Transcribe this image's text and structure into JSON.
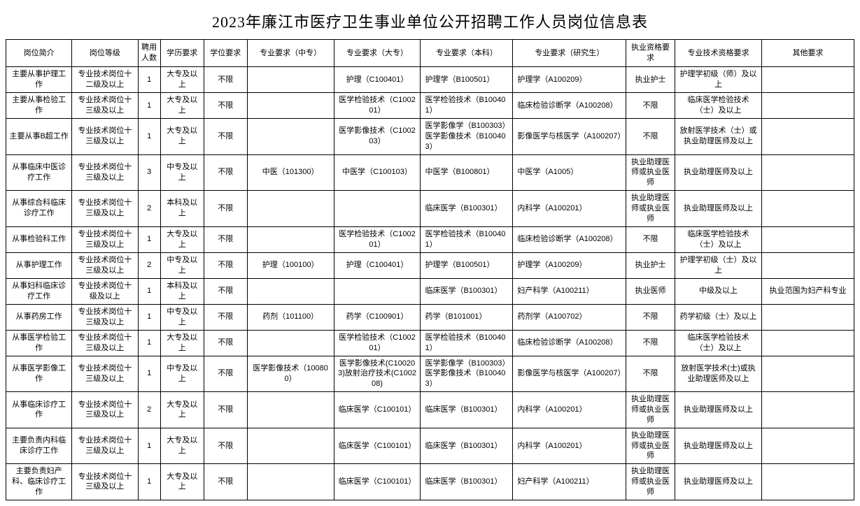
{
  "title": "2023年廉江市医疗卫生事业单位公开招聘工作人员岗位信息表",
  "columns": [
    "岗位简介",
    "岗位等级",
    "聘用人数",
    "学历要求",
    "学位要求",
    "专业要求（中专）",
    "专业要求（大专）",
    "专业要求（本科）",
    "专业要求（研究生）",
    "执业资格要求",
    "专业技术资格要求",
    "其他要求"
  ],
  "rows": [
    {
      "c0": "主要从事护理工作",
      "c1": "专业技术岗位十二级及以上",
      "c2": "1",
      "c3": "大专及以上",
      "c4": "不限",
      "c5": "",
      "c6": "护理（C100401）",
      "c7": "护理学（B100501）",
      "c8": "护理学（A100209）",
      "c9": "执业护士",
      "c10": "护理学初级（师）及以上",
      "c11": ""
    },
    {
      "c0": "主要从事检验工作",
      "c1": "专业技术岗位十三级及以上",
      "c2": "1",
      "c3": "大专及以上",
      "c4": "不限",
      "c5": "",
      "c6": "医学检验技术（C100201）",
      "c7": "医学检验技术（B100401）",
      "c8": "临床检验诊断学（A100208）",
      "c9": "不限",
      "c10": "临床医学检验技术（士）及以上",
      "c11": ""
    },
    {
      "c0": "主要从事B超工作",
      "c1": "专业技术岗位十三级及以上",
      "c2": "1",
      "c3": "大专及以上",
      "c4": "不限",
      "c5": "",
      "c6": "医学影像技术（C100203）",
      "c7": "医学影像学（B100303）医学影像技术（B100403）",
      "c8": "影像医学与核医学（A100207）",
      "c9": "不限",
      "c10": "放射医学技术（士）或执业助理医师及以上",
      "c11": ""
    },
    {
      "c0": "从事临床中医诊疗工作",
      "c1": "专业技术岗位十三级及以上",
      "c2": "3",
      "c3": "中专及以上",
      "c4": "不限",
      "c5": "中医（101300）",
      "c6": "中医学（C100103）",
      "c7": "中医学（B100801）",
      "c8": "中医学（A1005）",
      "c9": "执业助理医师或执业医师",
      "c10": "执业助理医师及以上",
      "c11": ""
    },
    {
      "c0": "从事综合科临床诊疗工作",
      "c1": "专业技术岗位十三级及以上",
      "c2": "2",
      "c3": "本科及以上",
      "c4": "不限",
      "c5": "",
      "c6": "",
      "c7": "临床医学（B100301）",
      "c8": "内科学（A100201）",
      "c9": "执业助理医师或执业医师",
      "c10": "执业助理医师及以上",
      "c11": ""
    },
    {
      "c0": "从事检验科工作",
      "c1": "专业技术岗位十三级及以上",
      "c2": "1",
      "c3": "大专及以上",
      "c4": "不限",
      "c5": "",
      "c6": "医学检验技术（C100201）",
      "c7": "医学检验技术（B100401）",
      "c8": "临床检验诊断学（A100208）",
      "c9": "不限",
      "c10": "临床医学检验技术（士）及以上",
      "c11": ""
    },
    {
      "c0": "从事护理工作",
      "c1": "专业技术岗位十三级及以上",
      "c2": "2",
      "c3": "中专及以上",
      "c4": "不限",
      "c5": "护理（100100）",
      "c6": "护理（C100401）",
      "c7": "护理学（B100501）",
      "c8": "护理学（A100209）",
      "c9": "执业护士",
      "c10": "护理学初级（士）及以上",
      "c11": ""
    },
    {
      "c0": "从事妇科临床诊疗工作",
      "c1": "专业技术岗位十级及以上",
      "c2": "1",
      "c3": "本科及以上",
      "c4": "不限",
      "c5": "",
      "c6": "",
      "c7": "临床医学（B100301）",
      "c8": "妇产科学（A100211）",
      "c9": "执业医师",
      "c10": "中级及以上",
      "c11": "执业范围为妇产科专业"
    },
    {
      "c0": "从事药房工作",
      "c1": "专业技术岗位十三级及以上",
      "c2": "1",
      "c3": "中专及以上",
      "c4": "不限",
      "c5": "药剂（101100）",
      "c6": "药学（C100901）",
      "c7": "药学（B101001）",
      "c8": "药剂学（A100702）",
      "c9": "不限",
      "c10": "药学初级（士）及以上",
      "c11": ""
    },
    {
      "c0": "从事医学检验工作",
      "c1": "专业技术岗位十三级及以上",
      "c2": "1",
      "c3": "大专及以上",
      "c4": "不限",
      "c5": "",
      "c6": "医学检验技术（C100201）",
      "c7": "医学检验技术（B100401）",
      "c8": "临床检验诊断学（A100208）",
      "c9": "不限",
      "c10": "临床医学检验技术（士）及以上",
      "c11": ""
    },
    {
      "c0": "从事医学影像工作",
      "c1": "专业技术岗位十三级及以上",
      "c2": "1",
      "c3": "中专及以上",
      "c4": "不限",
      "c5": "医学影像技术（100800）",
      "c6": "医学影像技术(C100203)放射治疗技术(C100208)",
      "c7": "医学影像学（B100303）医学影像技术（B100403）",
      "c8": "影像医学与核医学（A100207）",
      "c9": "不限",
      "c10": "放射医学技术(士)或执业助理医师及以上",
      "c11": ""
    },
    {
      "c0": "从事临床诊疗工作",
      "c1": "专业技术岗位十三级及以上",
      "c2": "2",
      "c3": "大专及以上",
      "c4": "不限",
      "c5": "",
      "c6": "临床医学（C100101）",
      "c7": "临床医学（B100301）",
      "c8": "内科学（A100201）",
      "c9": "执业助理医师或执业医师",
      "c10": "执业助理医师及以上",
      "c11": ""
    },
    {
      "c0": "主要负责内科临床诊疗工作",
      "c1": "专业技术岗位十三级及以上",
      "c2": "1",
      "c3": "大专及以上",
      "c4": "不限",
      "c5": "",
      "c6": "临床医学（C100101）",
      "c7": "临床医学（B100301）",
      "c8": "内科学（A100201）",
      "c9": "执业助理医师或执业医师",
      "c10": "执业助理医师及以上",
      "c11": ""
    },
    {
      "c0": "主要负责妇产科、临床诊疗工作",
      "c1": "专业技术岗位十三级及以上",
      "c2": "1",
      "c3": "大专及以上",
      "c4": "不限",
      "c5": "",
      "c6": "临床医学（C100101）",
      "c7": "临床医学（B100301）",
      "c8": "妇产科学（A100211）",
      "c9": "执业助理医师或执业医师",
      "c10": "执业助理医师及以上",
      "c11": ""
    }
  ],
  "left_align_cols": [
    "c7",
    "c8"
  ]
}
